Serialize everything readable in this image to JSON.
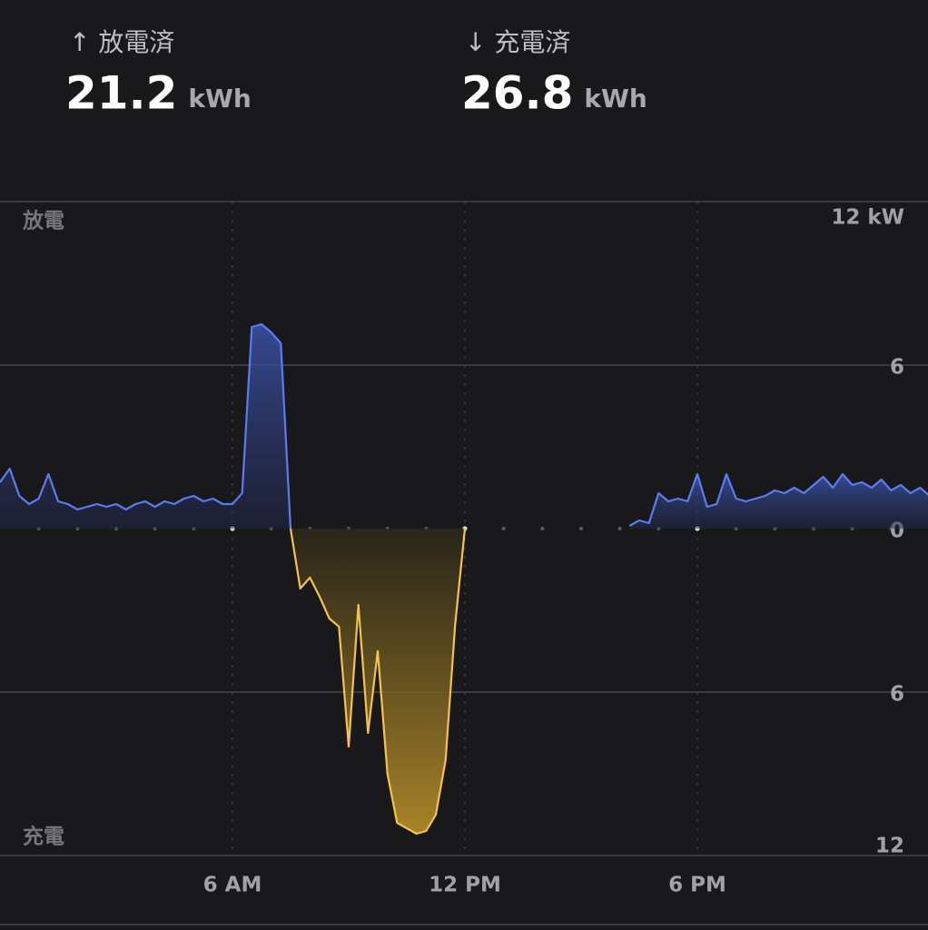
{
  "summary": [
    {
      "label": "↑ 放電済",
      "value": "21.2",
      "unit": "kWh"
    },
    {
      "label": "↓ 充電済",
      "value": "26.8",
      "unit": "kWh"
    }
  ],
  "chart_data": {
    "type": "area",
    "ylabel_top": "放電",
    "ylabel_bottom": "充電",
    "x": [
      0,
      0.25,
      0.5,
      0.75,
      1,
      1.25,
      1.5,
      1.75,
      2,
      2.25,
      2.5,
      2.75,
      3,
      3.25,
      3.5,
      3.75,
      4,
      4.25,
      4.5,
      4.75,
      5,
      5.25,
      5.5,
      5.75,
      6,
      6.25,
      6.5,
      6.75,
      7,
      7.25,
      7.5,
      7.75,
      8,
      8.25,
      8.5,
      8.75,
      9,
      9.25,
      9.5,
      9.75,
      10,
      10.25,
      10.5,
      10.75,
      11,
      11.25,
      11.5,
      11.75,
      12,
      12.25,
      12.5,
      12.75,
      13,
      13.25,
      13.5,
      13.75,
      14,
      14.25,
      14.5,
      14.75,
      15,
      15.25,
      15.5,
      15.75,
      16,
      16.25,
      16.5,
      16.75,
      17,
      17.25,
      17.5,
      17.75,
      18,
      18.25,
      18.5,
      18.75,
      19,
      19.25,
      19.5,
      19.75,
      20,
      20.25,
      20.5,
      20.75,
      21,
      21.25,
      21.5,
      21.75,
      22,
      22.25,
      22.5,
      22.75,
      23,
      23.25,
      23.5,
      23.75,
      24
    ],
    "series": [
      {
        "color": "#5b7cf0",
        "values": [
          1.7,
          2.2,
          1.2,
          0.9,
          1.1,
          2.0,
          1.0,
          0.9,
          0.7,
          0.8,
          0.9,
          0.8,
          0.9,
          0.7,
          0.9,
          1.0,
          0.8,
          1.0,
          0.9,
          1.1,
          1.2,
          1.0,
          1.1,
          0.9,
          0.9,
          1.3,
          7.4,
          7.5,
          7.2,
          6.8,
          0,
          null,
          null,
          null,
          null,
          null,
          null,
          null,
          null,
          null,
          null,
          null,
          null,
          null,
          null,
          null,
          null,
          null,
          null,
          null,
          null,
          null,
          null,
          null,
          null,
          null,
          null,
          null,
          null,
          null,
          null,
          null,
          null,
          null,
          null,
          0.1,
          0.3,
          0.2,
          1.3,
          1.0,
          1.1,
          1.0,
          2.0,
          0.8,
          0.9,
          2.0,
          1.1,
          1.0,
          1.1,
          1.2,
          1.4,
          1.3,
          1.5,
          1.3,
          1.6,
          1.9,
          1.5,
          2.0,
          1.6,
          1.7,
          1.5,
          1.8,
          1.4,
          1.6,
          1.3,
          1.5,
          1.2
        ]
      },
      {
        "color": "#f5c24c",
        "values": [
          null,
          null,
          null,
          null,
          null,
          null,
          null,
          null,
          null,
          null,
          null,
          null,
          null,
          null,
          null,
          null,
          null,
          null,
          null,
          null,
          null,
          null,
          null,
          null,
          null,
          null,
          null,
          null,
          null,
          null,
          0,
          -2.2,
          -1.8,
          -2.5,
          -3.3,
          -3.6,
          -8.0,
          -2.8,
          -7.5,
          -4.5,
          -9.0,
          -10.8,
          -11.0,
          -11.2,
          -11.1,
          -10.5,
          -8.5,
          -3.5,
          0,
          null,
          null,
          null,
          null,
          null,
          null,
          null,
          null,
          null,
          null,
          null,
          null,
          null,
          null,
          null,
          null,
          null,
          null,
          null,
          null,
          null,
          null,
          null,
          null,
          null,
          null,
          null,
          null,
          null,
          null,
          null,
          null,
          null,
          null,
          null,
          null,
          null,
          null,
          null,
          null,
          null,
          null,
          null,
          null,
          null,
          null,
          null,
          null
        ]
      }
    ],
    "xlim": [
      0,
      24
    ],
    "xticks": [
      {
        "value": 6,
        "label": "6 AM"
      },
      {
        "value": 12,
        "label": "12 PM"
      },
      {
        "value": 18,
        "label": "6 PM"
      }
    ],
    "ylim": [
      -12,
      12
    ],
    "yticks": [
      {
        "value": 12,
        "label": "12 kW"
      },
      6,
      0,
      {
        "value": -6,
        "label": "6"
      },
      {
        "value": -12,
        "label": "12"
      }
    ],
    "grid": true
  }
}
